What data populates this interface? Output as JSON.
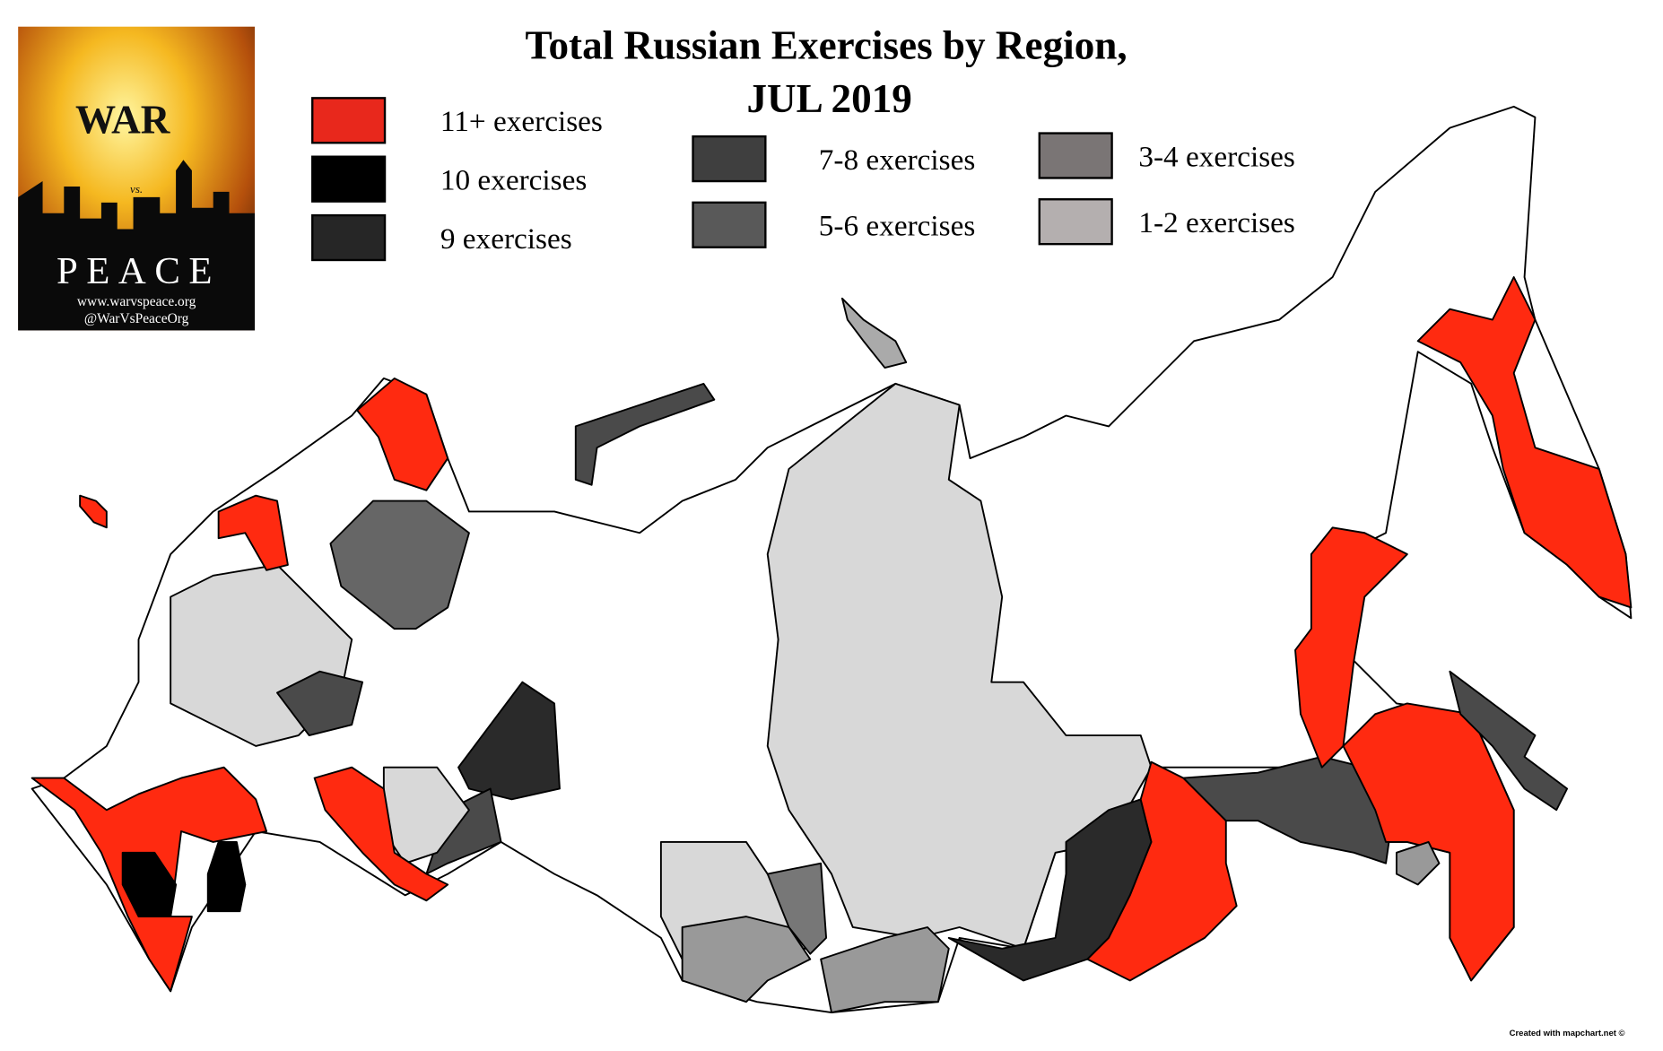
{
  "header": {
    "title_line1": "Total Russian Exercises by Region,",
    "title_line2": "JUL 2019"
  },
  "legend": [
    {
      "label": "11+ exercises",
      "color": "#e8281c"
    },
    {
      "label": "10 exercises",
      "color": "#000000"
    },
    {
      "label": "9 exercises",
      "color": "#262626"
    },
    {
      "label": "7-8 exercises",
      "color": "#3f3f3f"
    },
    {
      "label": "5-6 exercises",
      "color": "#595959"
    },
    {
      "label": "3-4 exercises",
      "color": "#7a7575"
    },
    {
      "label": "1-2 exercises",
      "color": "#b4afaf"
    }
  ],
  "logo": {
    "war": "WAR",
    "vs": "vs.",
    "peace": "PEACE",
    "url": "www.warvspeace.org",
    "handle": "@WarVsPeaceOrg"
  },
  "credit": "Created with mapchart.net ©"
}
